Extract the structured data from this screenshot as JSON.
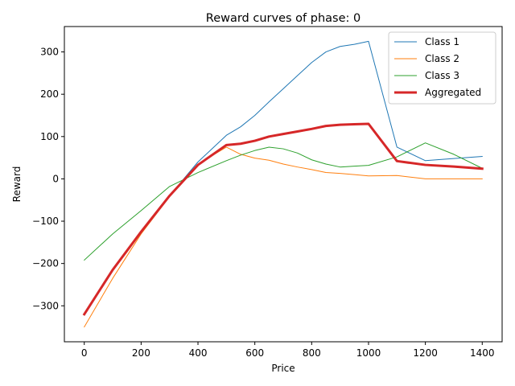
{
  "chart_data": {
    "type": "line",
    "title": "Reward curves of phase: 0",
    "xlabel": "Price",
    "ylabel": "Reward",
    "xlim": [
      -70,
      1470
    ],
    "ylim": [
      -385,
      360
    ],
    "xticks": [
      0,
      200,
      400,
      600,
      800,
      1000,
      1200,
      1400
    ],
    "yticks": [
      -300,
      -200,
      -100,
      0,
      100,
      200,
      300
    ],
    "grid": false,
    "legend_position": "top-right",
    "series": [
      {
        "name": "Class 1",
        "color": "#1f77b4",
        "width": 1,
        "x": [
          0,
          100,
          200,
          300,
          400,
          500,
          550,
          600,
          650,
          700,
          750,
          800,
          850,
          900,
          950,
          1000,
          1100,
          1200,
          1300,
          1400
        ],
        "y": [
          -320,
          -215,
          -125,
          -40,
          40,
          103,
          123,
          150,
          182,
          213,
          244,
          275,
          300,
          313,
          318,
          325,
          75,
          43,
          48,
          53
        ]
      },
      {
        "name": "Class 2",
        "color": "#ff7f0e",
        "width": 1,
        "x": [
          0,
          100,
          200,
          300,
          400,
          500,
          550,
          600,
          650,
          700,
          750,
          800,
          850,
          900,
          950,
          1000,
          1100,
          1200,
          1300,
          1400
        ],
        "y": [
          -350,
          -235,
          -130,
          -42,
          35,
          75,
          58,
          49,
          44,
          35,
          28,
          22,
          15,
          13,
          10,
          7,
          8,
          0,
          0,
          0
        ]
      },
      {
        "name": "Class 3",
        "color": "#2ca02c",
        "width": 1,
        "x": [
          0,
          100,
          200,
          300,
          400,
          500,
          550,
          600,
          650,
          700,
          750,
          800,
          850,
          900,
          950,
          1000,
          1100,
          1200,
          1300,
          1400
        ],
        "y": [
          -192,
          -130,
          -75,
          -18,
          15,
          43,
          56,
          67,
          75,
          71,
          61,
          45,
          35,
          28,
          30,
          32,
          52,
          85,
          58,
          25
        ]
      },
      {
        "name": "Aggregated",
        "color": "#d62728",
        "width": 3,
        "x": [
          0,
          100,
          200,
          300,
          400,
          500,
          550,
          600,
          650,
          700,
          750,
          800,
          850,
          900,
          950,
          1000,
          1100,
          1200,
          1300,
          1400
        ],
        "y": [
          -320,
          -215,
          -125,
          -40,
          33,
          80,
          83,
          90,
          100,
          106,
          112,
          118,
          125,
          128,
          129,
          130,
          42,
          33,
          29,
          24
        ]
      }
    ]
  }
}
